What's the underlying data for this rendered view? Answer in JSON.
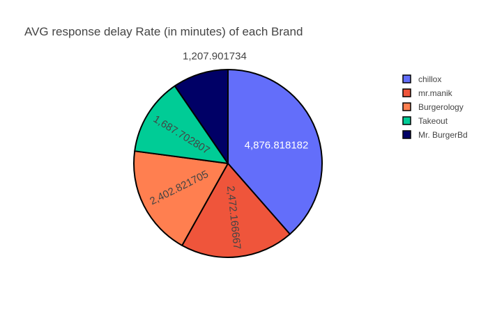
{
  "chart_data": {
    "type": "pie",
    "title": "AVG response delay Rate (in minutes) of each Brand",
    "labels": [
      "chillox",
      "mr.manik",
      "Burgerology",
      "Takeout",
      "Mr. BurgerBd"
    ],
    "values": [
      4876.818182,
      2472.166667,
      2402.821705,
      1687.702807,
      1207.901734
    ],
    "value_labels": [
      "4,876.818182",
      "2,472.166667",
      "2,402.821705",
      "1,687.702807",
      "1,207.901734"
    ],
    "colors": [
      "#636efa",
      "#ef553b",
      "#ff7f50",
      "#00cc96",
      "#000066"
    ],
    "legend_position": "top-right",
    "slice_outline": "black"
  }
}
